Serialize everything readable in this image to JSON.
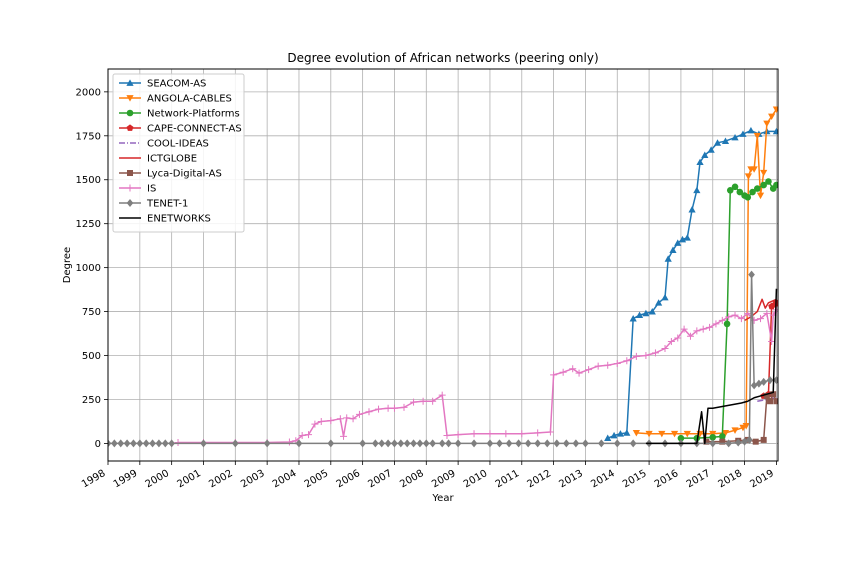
{
  "chart_data": {
    "type": "line",
    "title": "Degree evolution of African networks (peering only)",
    "xlabel": "Year",
    "ylabel": "Degree",
    "xlim": [
      1998.0,
      2019.05
    ],
    "ylim": [
      -100,
      2130
    ],
    "x_ticks": [
      "1998",
      "1999",
      "2000",
      "2001",
      "2002",
      "2003",
      "2004",
      "2005",
      "2006",
      "2007",
      "2008",
      "2009",
      "2010",
      "2011",
      "2012",
      "2013",
      "2014",
      "2015",
      "2016",
      "2017",
      "2018",
      "2019"
    ],
    "y_ticks": [
      0,
      250,
      500,
      750,
      1000,
      1250,
      1500,
      1750,
      2000
    ],
    "grid": true,
    "legend_position": "top-left",
    "series": [
      {
        "name": "SEACOM-AS",
        "color": "#1f77b4",
        "marker": "triangle-up",
        "dash": "",
        "points": [
          [
            2013.7,
            30
          ],
          [
            2013.9,
            45
          ],
          [
            2014.1,
            55
          ],
          [
            2014.3,
            60
          ],
          [
            2014.5,
            710
          ],
          [
            2014.7,
            730
          ],
          [
            2014.9,
            740
          ],
          [
            2015.1,
            750
          ],
          [
            2015.3,
            800
          ],
          [
            2015.5,
            830
          ],
          [
            2015.6,
            1050
          ],
          [
            2015.75,
            1100
          ],
          [
            2015.9,
            1140
          ],
          [
            2016.05,
            1160
          ],
          [
            2016.2,
            1170
          ],
          [
            2016.35,
            1330
          ],
          [
            2016.5,
            1440
          ],
          [
            2016.6,
            1600
          ],
          [
            2016.75,
            1640
          ],
          [
            2016.95,
            1670
          ],
          [
            2017.15,
            1710
          ],
          [
            2017.4,
            1720
          ],
          [
            2017.7,
            1740
          ],
          [
            2017.95,
            1760
          ],
          [
            2018.2,
            1780
          ],
          [
            2018.45,
            1760
          ],
          [
            2018.7,
            1775
          ],
          [
            2019.0,
            1775
          ]
        ]
      },
      {
        "name": "ANGOLA-CABLES",
        "color": "#ff7f0e",
        "marker": "triangle-down",
        "dash": "",
        "points": [
          [
            2014.6,
            60
          ],
          [
            2015.0,
            55
          ],
          [
            2015.4,
            55
          ],
          [
            2015.8,
            55
          ],
          [
            2016.2,
            55
          ],
          [
            2016.6,
            55
          ],
          [
            2017.0,
            55
          ],
          [
            2017.4,
            60
          ],
          [
            2017.7,
            75
          ],
          [
            2017.95,
            90
          ],
          [
            2018.05,
            100
          ],
          [
            2018.12,
            1520
          ],
          [
            2018.2,
            1560
          ],
          [
            2018.3,
            1560
          ],
          [
            2018.4,
            1750
          ],
          [
            2018.5,
            1410
          ],
          [
            2018.6,
            1540
          ],
          [
            2018.7,
            1820
          ],
          [
            2018.85,
            1860
          ],
          [
            2019.0,
            1900
          ]
        ]
      },
      {
        "name": "Network-Platforms",
        "color": "#2ca02c",
        "marker": "circle",
        "dash": "",
        "points": [
          [
            2016.0,
            30
          ],
          [
            2016.5,
            30
          ],
          [
            2017.0,
            35
          ],
          [
            2017.3,
            40
          ],
          [
            2017.45,
            680
          ],
          [
            2017.55,
            1440
          ],
          [
            2017.7,
            1460
          ],
          [
            2017.85,
            1430
          ],
          [
            2018.0,
            1410
          ],
          [
            2018.1,
            1400
          ],
          [
            2018.25,
            1430
          ],
          [
            2018.4,
            1450
          ],
          [
            2018.6,
            1470
          ],
          [
            2018.75,
            1490
          ],
          [
            2018.9,
            1450
          ],
          [
            2019.0,
            1470
          ]
        ]
      },
      {
        "name": "CAPE-CONNECT-AS",
        "color": "#d62728",
        "marker": "pentagon",
        "dash": "",
        "points": [
          [
            2018.6,
            270
          ],
          [
            2018.75,
            280
          ],
          [
            2018.85,
            780
          ],
          [
            2018.95,
            790
          ],
          [
            2019.0,
            800
          ]
        ]
      },
      {
        "name": "COOL-IDEAS",
        "color": "#9467bd",
        "marker": "none",
        "dash": "6,2,1,2",
        "points": [
          [
            2018.4,
            240
          ],
          [
            2018.7,
            250
          ],
          [
            2019.0,
            260
          ]
        ]
      },
      {
        "name": "ICTGLOBE",
        "color": "#d62728",
        "marker": "none",
        "dash": "",
        "points": [
          [
            2018.0,
            700
          ],
          [
            2018.2,
            720
          ],
          [
            2018.4,
            750
          ],
          [
            2018.55,
            820
          ],
          [
            2018.65,
            770
          ],
          [
            2018.75,
            800
          ],
          [
            2019.0,
            820
          ]
        ]
      },
      {
        "name": "Lyca-Digital-AS",
        "color": "#8c564b",
        "marker": "square",
        "dash": "",
        "points": [
          [
            2016.8,
            10
          ],
          [
            2017.3,
            10
          ],
          [
            2017.8,
            15
          ],
          [
            2018.1,
            20
          ],
          [
            2018.35,
            10
          ],
          [
            2018.6,
            20
          ],
          [
            2018.7,
            270
          ],
          [
            2018.8,
            240
          ],
          [
            2018.9,
            280
          ],
          [
            2019.0,
            240
          ]
        ]
      },
      {
        "name": "IS",
        "color": "#e377c2",
        "marker": "plus",
        "dash": "",
        "points": [
          [
            2000.2,
            5
          ],
          [
            2001.0,
            5
          ],
          [
            2002.0,
            5
          ],
          [
            2003.0,
            5
          ],
          [
            2003.7,
            8
          ],
          [
            2003.9,
            15
          ],
          [
            2004.1,
            45
          ],
          [
            2004.3,
            50
          ],
          [
            2004.5,
            110
          ],
          [
            2004.7,
            125
          ],
          [
            2005.0,
            130
          ],
          [
            2005.3,
            140
          ],
          [
            2005.4,
            40
          ],
          [
            2005.5,
            145
          ],
          [
            2005.7,
            140
          ],
          [
            2005.9,
            165
          ],
          [
            2006.2,
            180
          ],
          [
            2006.5,
            195
          ],
          [
            2006.8,
            200
          ],
          [
            2007.0,
            200
          ],
          [
            2007.3,
            205
          ],
          [
            2007.6,
            235
          ],
          [
            2007.9,
            240
          ],
          [
            2008.2,
            240
          ],
          [
            2008.5,
            275
          ],
          [
            2008.65,
            45
          ],
          [
            2009.0,
            50
          ],
          [
            2009.5,
            55
          ],
          [
            2010.0,
            55
          ],
          [
            2010.5,
            55
          ],
          [
            2011.0,
            55
          ],
          [
            2011.5,
            60
          ],
          [
            2011.9,
            65
          ],
          [
            2012.0,
            390
          ],
          [
            2012.3,
            405
          ],
          [
            2012.6,
            425
          ],
          [
            2012.8,
            400
          ],
          [
            2013.1,
            420
          ],
          [
            2013.4,
            440
          ],
          [
            2013.7,
            445
          ],
          [
            2014.0,
            455
          ],
          [
            2014.3,
            470
          ],
          [
            2014.6,
            495
          ],
          [
            2014.9,
            500
          ],
          [
            2015.2,
            515
          ],
          [
            2015.5,
            540
          ],
          [
            2015.7,
            580
          ],
          [
            2015.9,
            600
          ],
          [
            2016.1,
            650
          ],
          [
            2016.3,
            610
          ],
          [
            2016.5,
            640
          ],
          [
            2016.7,
            650
          ],
          [
            2016.9,
            660
          ],
          [
            2017.1,
            680
          ],
          [
            2017.3,
            700
          ],
          [
            2017.5,
            720
          ],
          [
            2017.7,
            730
          ],
          [
            2017.9,
            710
          ],
          [
            2018.1,
            740
          ],
          [
            2018.3,
            700
          ],
          [
            2018.5,
            710
          ],
          [
            2018.7,
            740
          ],
          [
            2018.85,
            580
          ],
          [
            2018.9,
            730
          ],
          [
            2019.0,
            760
          ]
        ]
      },
      {
        "name": "TENET-1",
        "color": "#7f7f7f",
        "marker": "diamond",
        "dash": "",
        "points": [
          [
            1998.0,
            0
          ],
          [
            1998.2,
            0
          ],
          [
            1998.4,
            0
          ],
          [
            1998.6,
            0
          ],
          [
            1998.8,
            0
          ],
          [
            1999.0,
            0
          ],
          [
            1999.2,
            0
          ],
          [
            1999.4,
            0
          ],
          [
            1999.6,
            0
          ],
          [
            1999.8,
            0
          ],
          [
            2000.0,
            0
          ],
          [
            2001.0,
            0
          ],
          [
            2002.0,
            0
          ],
          [
            2003.0,
            0
          ],
          [
            2004.0,
            0
          ],
          [
            2005.0,
            0
          ],
          [
            2006.0,
            0
          ],
          [
            2006.4,
            0
          ],
          [
            2006.6,
            0
          ],
          [
            2006.8,
            0
          ],
          [
            2007.0,
            0
          ],
          [
            2007.2,
            0
          ],
          [
            2007.4,
            0
          ],
          [
            2007.6,
            0
          ],
          [
            2007.8,
            0
          ],
          [
            2008.0,
            0
          ],
          [
            2008.2,
            0
          ],
          [
            2008.5,
            0
          ],
          [
            2008.7,
            0
          ],
          [
            2009.0,
            0
          ],
          [
            2009.5,
            0
          ],
          [
            2010.0,
            0
          ],
          [
            2010.3,
            0
          ],
          [
            2010.6,
            0
          ],
          [
            2010.9,
            0
          ],
          [
            2011.2,
            0
          ],
          [
            2011.5,
            0
          ],
          [
            2011.8,
            0
          ],
          [
            2012.1,
            0
          ],
          [
            2012.4,
            0
          ],
          [
            2012.7,
            0
          ],
          [
            2013.0,
            0
          ],
          [
            2013.5,
            0
          ],
          [
            2014.0,
            0
          ],
          [
            2014.5,
            0
          ],
          [
            2015.0,
            0
          ],
          [
            2015.5,
            0
          ],
          [
            2016.0,
            0
          ],
          [
            2016.5,
            0
          ],
          [
            2017.0,
            0
          ],
          [
            2017.5,
            0
          ],
          [
            2017.8,
            5
          ],
          [
            2018.0,
            10
          ],
          [
            2018.15,
            20
          ],
          [
            2018.22,
            960
          ],
          [
            2018.3,
            330
          ],
          [
            2018.45,
            340
          ],
          [
            2018.6,
            350
          ],
          [
            2018.8,
            360
          ],
          [
            2019.0,
            360
          ]
        ]
      },
      {
        "name": "ENETWORKS",
        "color": "#000000",
        "marker": "none",
        "dash": "",
        "points": [
          [
            2014.9,
            0
          ],
          [
            2015.5,
            0
          ],
          [
            2016.0,
            0
          ],
          [
            2016.5,
            0
          ],
          [
            2016.65,
            180
          ],
          [
            2016.75,
            0
          ],
          [
            2016.85,
            200
          ],
          [
            2017.0,
            200
          ],
          [
            2017.3,
            210
          ],
          [
            2017.6,
            220
          ],
          [
            2017.9,
            230
          ],
          [
            2018.1,
            240
          ],
          [
            2018.3,
            260
          ],
          [
            2018.5,
            270
          ],
          [
            2018.7,
            280
          ],
          [
            2018.9,
            290
          ],
          [
            2019.0,
            880
          ]
        ]
      }
    ]
  }
}
